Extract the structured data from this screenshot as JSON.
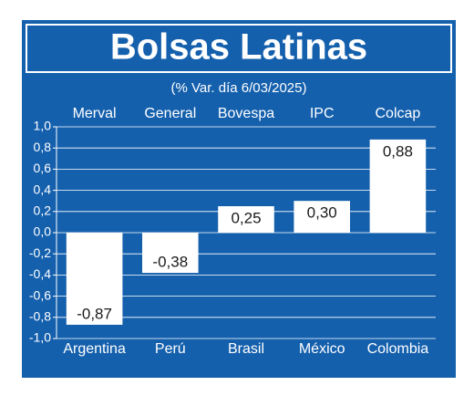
{
  "chart_data": {
    "type": "bar",
    "title": "Bolsas Latinas",
    "subtitle": "(% Var. día 6/03/2025)",
    "categories": [
      "Argentina",
      "Perú",
      "Brasil",
      "México",
      "Colombia"
    ],
    "index_names": [
      "Merval",
      "General",
      "Bovespa",
      "IPC",
      "Colcap"
    ],
    "values": [
      -0.87,
      -0.38,
      0.25,
      0.3,
      0.88
    ],
    "value_labels": [
      "-0,87",
      "-0,38",
      "0,25",
      "0,30",
      "0,88"
    ],
    "color": "#ffffff",
    "background": "#1560ad",
    "ylim": [
      -1.0,
      1.0
    ],
    "yticks": [
      {
        "value": 1.0,
        "label": "1,0"
      },
      {
        "value": 0.8,
        "label": "0,8"
      },
      {
        "value": 0.6,
        "label": "0,6"
      },
      {
        "value": 0.4,
        "label": "0,4"
      },
      {
        "value": 0.2,
        "label": "0,2"
      },
      {
        "value": 0.0,
        "label": "0,0"
      },
      {
        "value": -0.2,
        "label": "-0,2"
      },
      {
        "value": -0.4,
        "label": "-0,4"
      },
      {
        "value": -0.6,
        "label": "-0,6"
      },
      {
        "value": -0.8,
        "label": "-0,8"
      },
      {
        "value": -1.0,
        "label": "-1,0"
      }
    ],
    "grid": true
  }
}
